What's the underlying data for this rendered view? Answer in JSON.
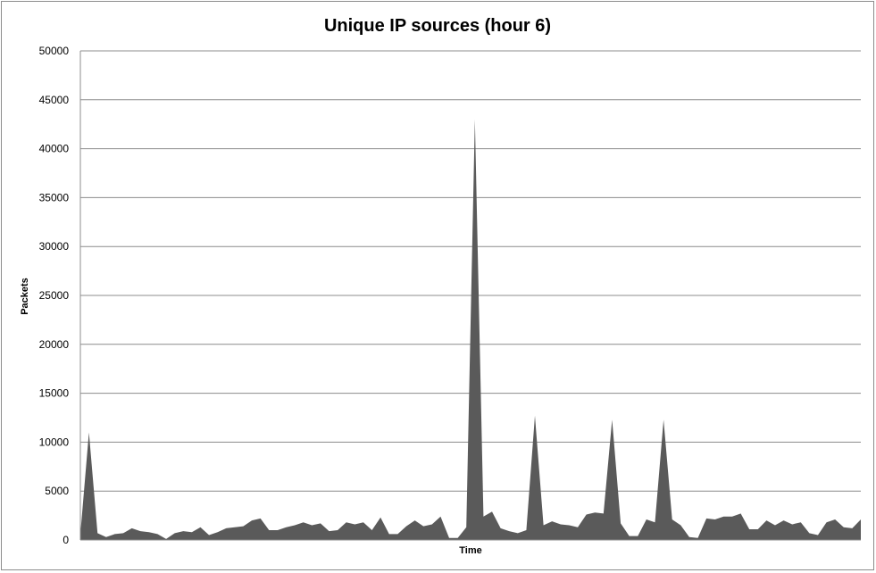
{
  "chart_data": {
    "type": "area",
    "title": "Unique IP sources (hour 6)",
    "xlabel": "Time",
    "ylabel": "Packets",
    "ylim": [
      0,
      50000
    ],
    "yticks": [
      0,
      5000,
      10000,
      15000,
      20000,
      25000,
      30000,
      35000,
      40000,
      45000,
      50000
    ],
    "grid": true,
    "legend": "none",
    "colors": {
      "fill": "#5a5a5a",
      "grid": "#8c8c8c",
      "axis": "#8c8c8c",
      "frame": "#8c8c8c"
    },
    "series": [
      {
        "values": [
          600,
          11000,
          700,
          300,
          600,
          700,
          1200,
          900,
          800,
          600,
          100,
          700,
          900,
          800,
          1300,
          500,
          800,
          1200,
          1300,
          1400,
          2000,
          2200,
          1000,
          1000,
          1300,
          1500,
          1800,
          1500,
          1700,
          900,
          1000,
          1800,
          1600,
          1800,
          1000,
          2300,
          600,
          600,
          1400,
          2000,
          1400,
          1600,
          2400,
          200,
          200,
          1300,
          43000,
          2400,
          2900,
          1200,
          900,
          700,
          1000,
          12700,
          1500,
          1900,
          1600,
          1500,
          1300,
          2600,
          2800,
          2700,
          12300,
          1700,
          400,
          400,
          2100,
          1800,
          12300,
          2100,
          1500,
          300,
          200,
          2200,
          2100,
          2400,
          2400,
          2700,
          1100,
          1100,
          2000,
          1500,
          2000,
          1600,
          1800,
          700,
          500,
          1800,
          2100,
          1300,
          1200,
          2100
        ]
      }
    ]
  }
}
